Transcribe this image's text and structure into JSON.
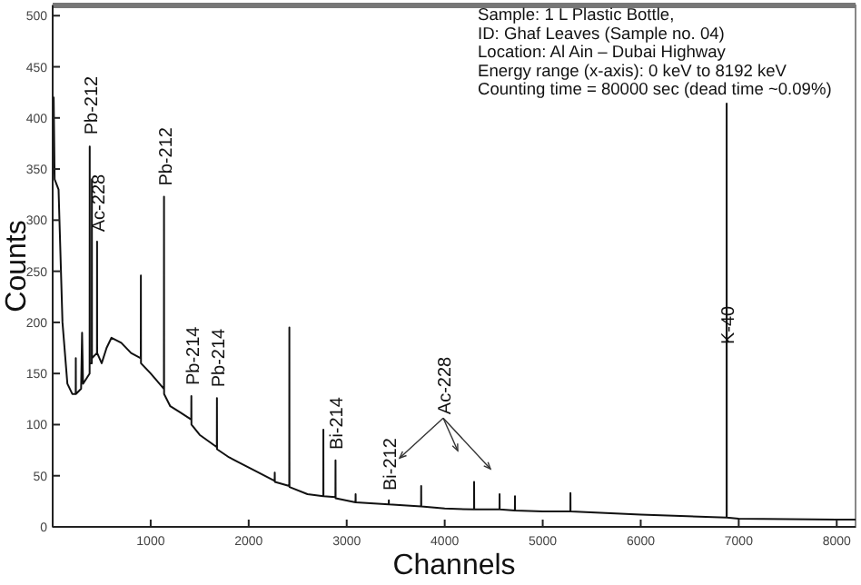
{
  "chart_data": {
    "type": "line",
    "xlabel": "Channels",
    "ylabel": "Counts",
    "xlim": [
      0,
      8192
    ],
    "ylim": [
      0,
      510
    ],
    "xticks": [
      1000,
      2000,
      3000,
      4000,
      5000,
      6000,
      7000,
      8000
    ],
    "yticks": [
      0,
      50,
      100,
      150,
      200,
      250,
      300,
      350,
      400,
      450,
      500
    ],
    "grid": false,
    "series": [
      {
        "color": "#111111",
        "x": [
          0,
          10,
          20,
          60,
          100,
          150,
          200,
          235,
          236,
          237,
          290,
          300,
          310,
          377,
          378,
          379,
          399,
          400,
          401,
          452,
          453,
          454,
          500,
          550,
          600,
          700,
          800,
          899,
          900,
          901,
          1000,
          1135,
          1136,
          1137,
          1200,
          1300,
          1414,
          1415,
          1416,
          1500,
          1675,
          1676,
          1677,
          1800,
          2000,
          2265,
          2266,
          2267,
          2414,
          2415,
          2416,
          2600,
          2761,
          2762,
          2763,
          2885,
          2886,
          2887,
          3090,
          3091,
          3092,
          3429,
          3430,
          3431,
          3759,
          3760,
          3761,
          4000,
          4299,
          4300,
          4301,
          4559,
          4560,
          4561,
          4716,
          4717,
          4718,
          5000,
          5282,
          5283,
          5284,
          6000,
          6876,
          6877,
          6878,
          7000,
          8000,
          8192
        ],
        "values": [
          340,
          420,
          340,
          330,
          200,
          140,
          130,
          130,
          165,
          130,
          135,
          190,
          140,
          150,
          372,
          160,
          160,
          340,
          165,
          170,
          279,
          170,
          160,
          175,
          185,
          180,
          170,
          165,
          246,
          160,
          150,
          135,
          323,
          130,
          118,
          112,
          105,
          128,
          100,
          90,
          78,
          126,
          76,
          68,
          58,
          45,
          53,
          44,
          40,
          195,
          39,
          32,
          30,
          95,
          30,
          29,
          65,
          28,
          24,
          32,
          24,
          22,
          26,
          22,
          20,
          40,
          20,
          18,
          17,
          44,
          17,
          17,
          32,
          17,
          16,
          30,
          16,
          15,
          15,
          33,
          15,
          12,
          9,
          414,
          9,
          8,
          7,
          7
        ]
      }
    ],
    "annotations": [
      {
        "text": "Pb-212",
        "x": 378,
        "y": 380
      },
      {
        "text": "Ac-228",
        "x": 453,
        "y": 285
      },
      {
        "text": "Pb-212",
        "x": 1136,
        "y": 330
      },
      {
        "text": "Pb-214",
        "x": 1415,
        "y": 135
      },
      {
        "text": "Pb-214",
        "x": 1676,
        "y": 133
      },
      {
        "text": "Bi-214",
        "x": 2886,
        "y": 72
      },
      {
        "text": "Bi-212",
        "x": 3430,
        "y": 32
      },
      {
        "text": "K-40",
        "x": 6877,
        "y": 175
      },
      "Ac-228",
      "Sample: 1 L Plastic Bottle,",
      "ID: Ghaf Leaves (Sample no. 04)",
      "Location: Al Ain – Dubai Highway",
      "Energy range (x-axis): 0 keV to 8192 keV",
      "Counting time = 80000 sec (dead time ~0.09%)"
    ]
  }
}
